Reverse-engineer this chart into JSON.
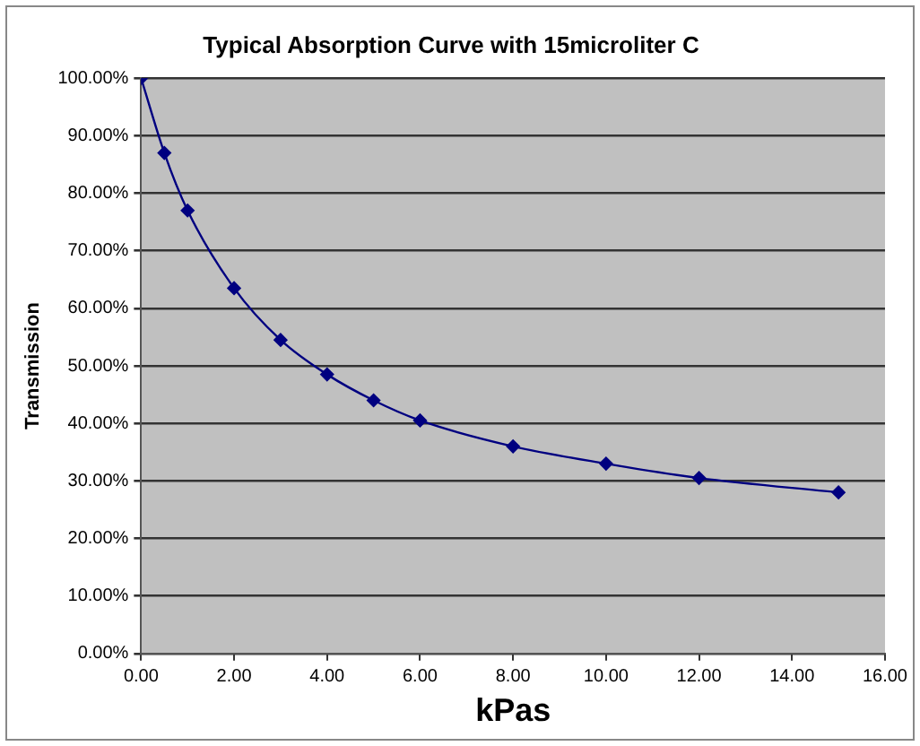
{
  "chart_data": {
    "type": "line",
    "title": "Typical Absorption Curve with 15microliter C",
    "xlabel": "kPas",
    "ylabel": "Transmission",
    "x": [
      0,
      0.5,
      1,
      2,
      3,
      4,
      5,
      6,
      8,
      10,
      12,
      15
    ],
    "series": [
      {
        "color": "#000080",
        "values": [
          100,
          87,
          77,
          63.5,
          54.5,
          48.5,
          44,
          40.5,
          36,
          33,
          30.5,
          28
        ]
      }
    ],
    "xlim": [
      0,
      16
    ],
    "xticks": [
      {
        "value": 0,
        "label": "0.00"
      },
      {
        "value": 2,
        "label": "2.00"
      },
      {
        "value": 4,
        "label": "4.00"
      },
      {
        "value": 6,
        "label": "6.00"
      },
      {
        "value": 8,
        "label": "8.00"
      },
      {
        "value": 10,
        "label": "10.00"
      },
      {
        "value": 12,
        "label": "12.00"
      },
      {
        "value": 14,
        "label": "14.00"
      },
      {
        "value": 16,
        "label": "16.00"
      }
    ],
    "ylim": [
      0,
      100
    ],
    "yticks": [
      {
        "value": 0,
        "label": "0.00%"
      },
      {
        "value": 10,
        "label": "10.00%"
      },
      {
        "value": 20,
        "label": "20.00%"
      },
      {
        "value": 30,
        "label": "30.00%"
      },
      {
        "value": 40,
        "label": "40.00%"
      },
      {
        "value": 50,
        "label": "50.00%"
      },
      {
        "value": 60,
        "label": "60.00%"
      },
      {
        "value": 70,
        "label": "70.00%"
      },
      {
        "value": 80,
        "label": "80.00%"
      },
      {
        "value": 90,
        "label": "90.00%"
      },
      {
        "value": 100,
        "label": "100.00%"
      }
    ],
    "grid": "y",
    "legend": false,
    "marker": "diamond",
    "line_style": "solid"
  }
}
